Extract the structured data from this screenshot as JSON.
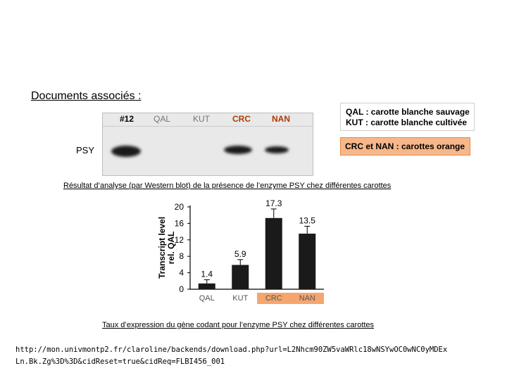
{
  "heading": "Documents associés :",
  "blot": {
    "lanes": [
      "#12",
      "QAL",
      "KUT",
      "CRC",
      "NAN"
    ],
    "row_label": "PSY"
  },
  "legend": {
    "line1": "QAL : carotte blanche sauvage",
    "line2": "KUT : carotte blanche cultivée",
    "orange": "CRC et NAN : carottes orange",
    "accent_color": "#f5a66e"
  },
  "caption_blot": "Résultat d’analyse (par Western blot) de la présence de l’enzyme PSY chez différentes carottes",
  "chart_data": {
    "type": "bar",
    "categories": [
      "QAL",
      "KUT",
      "CRC",
      "NAN"
    ],
    "values": [
      1.4,
      5.9,
      17.3,
      13.5
    ],
    "value_labels": [
      "1.4",
      "5.9",
      "17.3",
      "13.5"
    ],
    "errors": [
      0.9,
      1.3,
      2.2,
      1.8
    ],
    "ylabel_line1": "Transcript level",
    "ylabel_line2": "rel. QAL",
    "yticks": [
      0,
      4,
      8,
      12,
      16,
      20
    ],
    "ylim": [
      0,
      20
    ],
    "bar_color": "#1a1a1a",
    "highlight_categories": [
      "CRC",
      "NAN"
    ],
    "highlight_color": "#f5a66e"
  },
  "caption_chart": "Taux d’expression du gène codant pour l’enzyme PSY chez différentes carottes",
  "url_line1": "http://mon.univmontp2.fr/claroline/backends/download.php?url=L2Nhcm90ZW5vaWRlc18wNSYwOC0wNC0yMDEx",
  "url_line2": "Ln.Bk.Zg%3D%3D&cidReset=true&cidReq=FLBI456_001"
}
